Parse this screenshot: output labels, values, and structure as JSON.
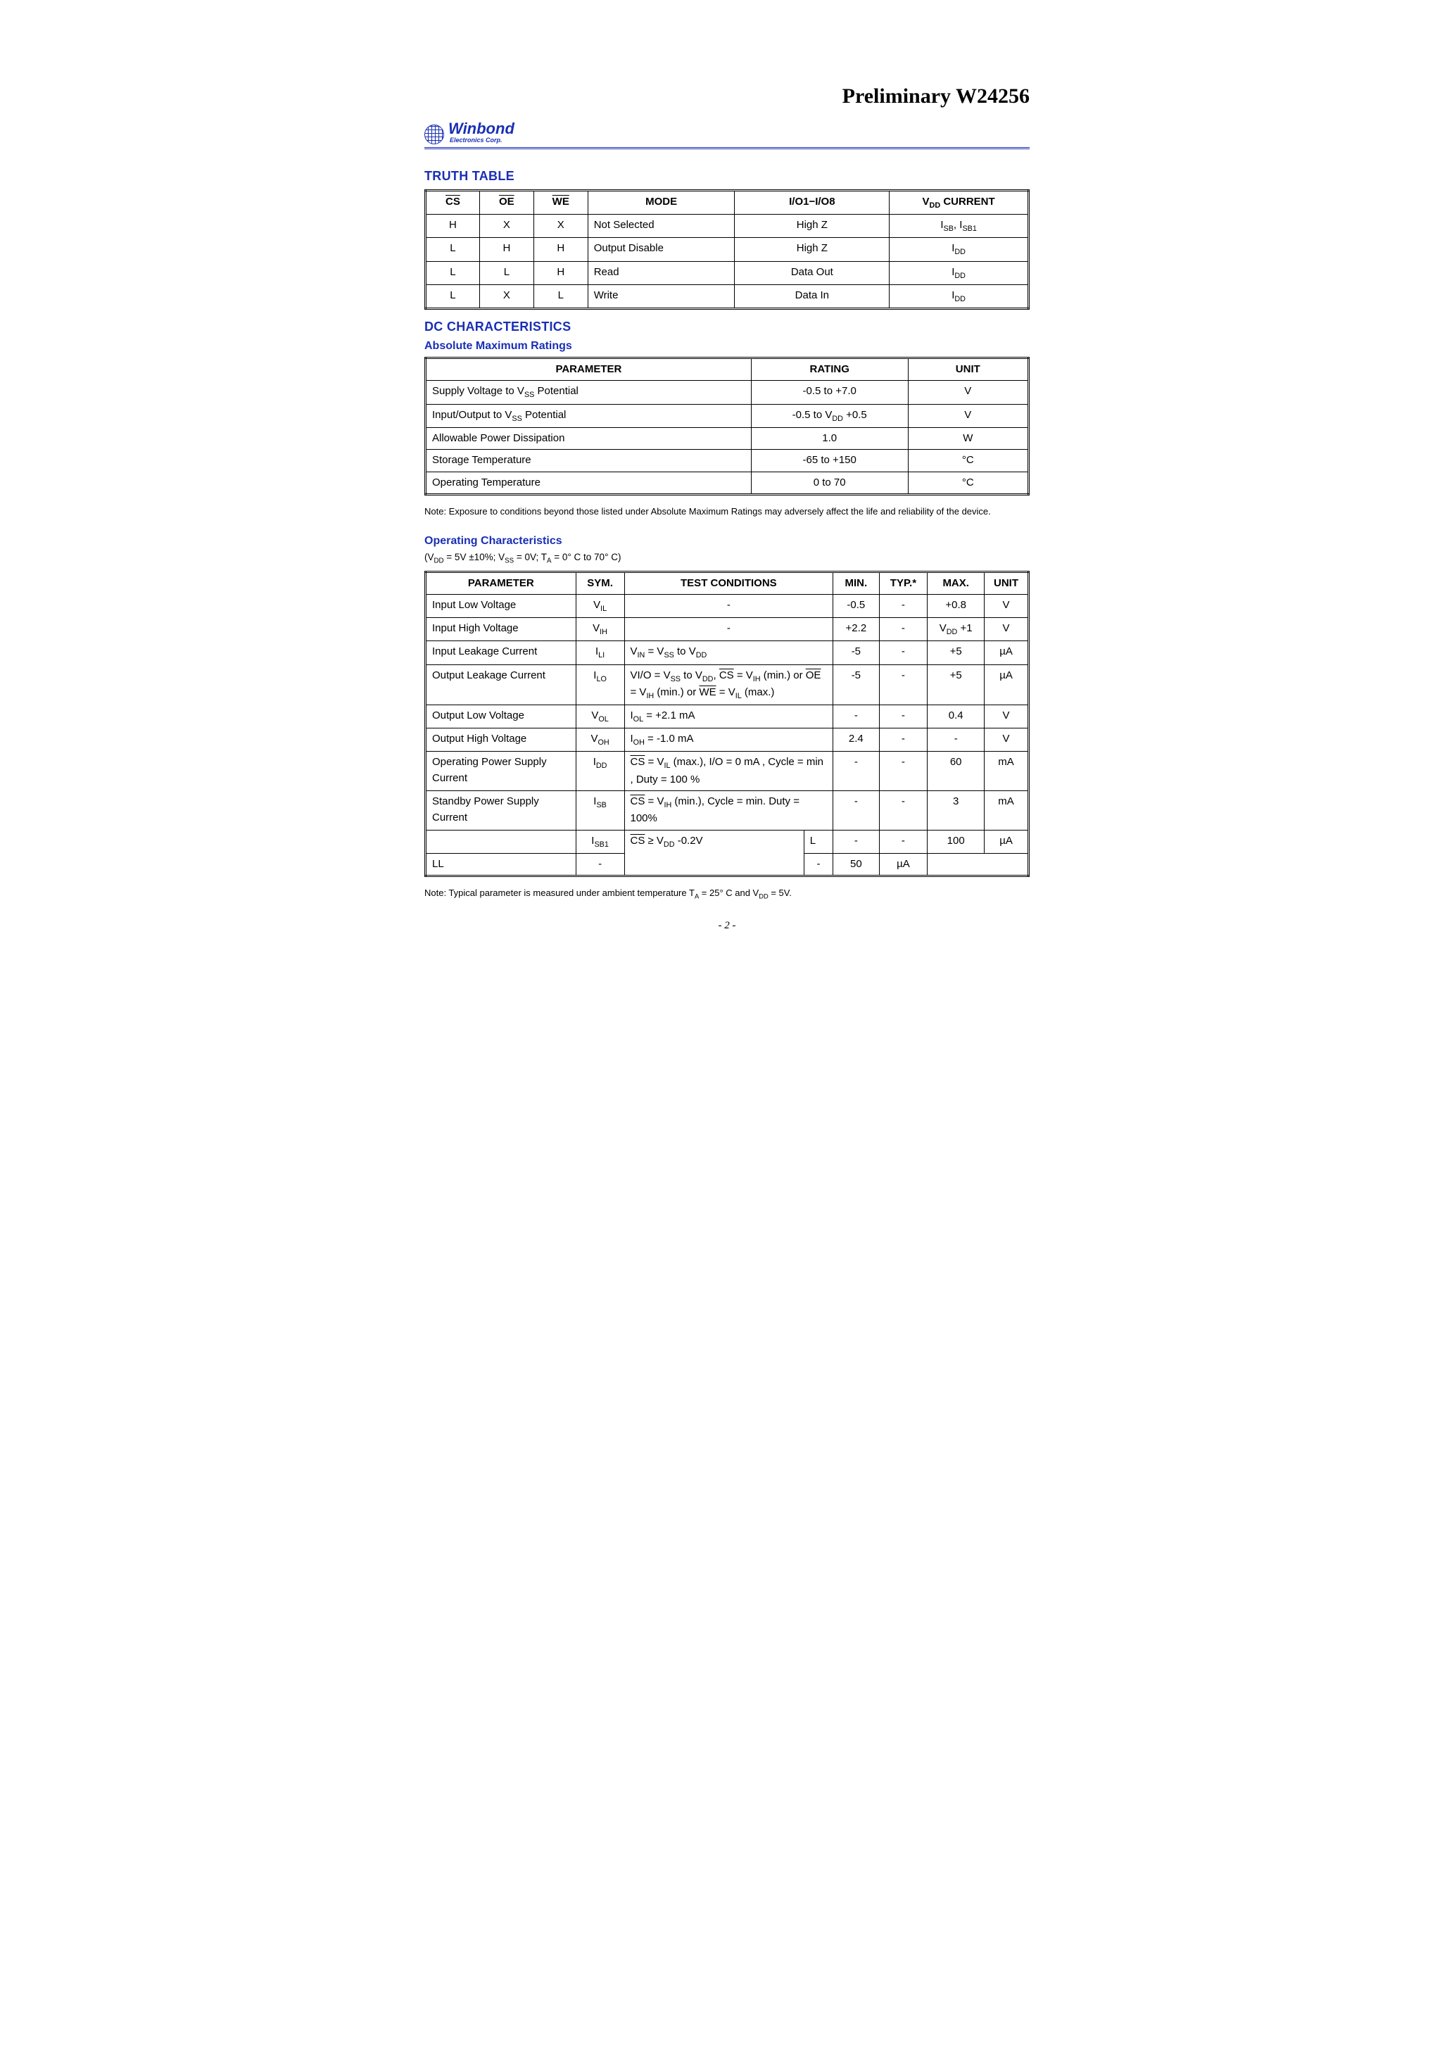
{
  "doc": {
    "title": "Preliminary W24256",
    "pagenum": "- 2 -"
  },
  "brand": {
    "name": "Winbond",
    "sub": "Electronics Corp."
  },
  "truth": {
    "heading": "TRUTH TABLE",
    "head": {
      "cs": "CS",
      "oe": "OE",
      "we": "WE",
      "mode": "MODE",
      "io": "I/O1−I/O8",
      "idd": "V",
      "idd_sub": "DD",
      "idd_rest": " CURRENT"
    },
    "rows": [
      {
        "cs": "H",
        "oe": "X",
        "we": "X",
        "mode": "Not Selected",
        "io": "High Z",
        "idd_html": "I<sub>SB</sub>, I<sub>SB1</sub>"
      },
      {
        "cs": "L",
        "oe": "H",
        "we": "H",
        "mode": "Output Disable",
        "io": "High Z",
        "idd_html": "I<sub>DD</sub>"
      },
      {
        "cs": "L",
        "oe": "L",
        "we": "H",
        "mode": "Read",
        "io": "Data Out",
        "idd_html": "I<sub>DD</sub>"
      },
      {
        "cs": "L",
        "oe": "X",
        "we": "L",
        "mode": "Write",
        "io": "Data In",
        "idd_html": "I<sub>DD</sub>"
      }
    ]
  },
  "dc": {
    "heading": "DC CHARACTERISTICS",
    "amr_heading": "Absolute Maximum Ratings",
    "amr_head": {
      "param": "PARAMETER",
      "rating": "RATING",
      "unit": "UNIT"
    },
    "amr_rows": [
      {
        "param_html": "Supply Voltage to V<sub>SS</sub> Potential",
        "rating": "-0.5 to +7.0",
        "unit": "V"
      },
      {
        "param_html": "Input/Output to V<sub>SS</sub> Potential",
        "rating_html": "-0.5 to V<sub>DD</sub> +0.5",
        "unit": "V"
      },
      {
        "param_html": "Allowable Power Dissipation",
        "rating": "1.0",
        "unit": "W"
      },
      {
        "param_html": "Storage Temperature",
        "rating": "-65 to +150",
        "unit": "°C"
      },
      {
        "param_html": "Operating Temperature",
        "rating": "0 to 70",
        "unit": "°C"
      }
    ],
    "amr_note": "Note: Exposure to conditions beyond those listed under Absolute Maximum Ratings may adversely affect the life and reliability of the device."
  },
  "op": {
    "heading": "Operating Characteristics",
    "cond_html": "(V<sub>DD</sub> = 5V ±10%; V<sub>SS</sub> = 0V; T<sub>A</sub> = 0° C to 70° C)",
    "head": {
      "param": "PARAMETER",
      "sym": "SYM.",
      "tc": "TEST CONDITIONS",
      "min": "MIN.",
      "typ": "TYP.*",
      "max": "MAX.",
      "unit": "UNIT"
    },
    "rows": [
      {
        "param": "Input Low Voltage",
        "sym_html": "V<sub>IL</sub>",
        "tc_html": "-",
        "tc_colspan": 2,
        "min": "-0.5",
        "typ": "-",
        "max": "+0.8",
        "unit": "V"
      },
      {
        "param": "Input High Voltage",
        "sym_html": "V<sub>IH</sub>",
        "tc_html": "-",
        "tc_colspan": 2,
        "min": "+2.2",
        "typ": "-",
        "max_html": "V<sub>DD</sub> +1",
        "unit": "V"
      },
      {
        "param": "Input Leakage Current",
        "sym_html": "I<sub>LI</sub>",
        "tc_html": "V<sub>IN</sub> = V<sub>SS</sub> to V<sub>DD</sub>",
        "tc_colspan": 2,
        "min": "-5",
        "typ": "-",
        "max": "+5",
        "unit": "µA"
      },
      {
        "param": "Output Leakage Current",
        "sym_html": "I<sub>LO</sub>",
        "tc_html": "VI/O = V<sub>SS</sub> to V<sub>DD</sub>, <span class=\"ov\">CS</span> = V<sub>IH</sub> (min.) or <span class=\"ov\">OE</span> = V<sub>IH</sub> (min.) or <span class=\"ov\">WE</span> = V<sub>IL</sub> (max.)",
        "tc_colspan": 2,
        "min": "-5",
        "typ": "-",
        "max": "+5",
        "unit": "µA"
      },
      {
        "param": "Output Low Voltage",
        "sym_html": "V<sub>OL</sub>",
        "tc_html": "I<sub>OL</sub> = +2.1 mA",
        "tc_colspan": 2,
        "min": "-",
        "typ": "-",
        "max": "0.4",
        "unit": "V"
      },
      {
        "param": "Output High Voltage",
        "sym_html": "V<sub>OH</sub>",
        "tc_html": "I<sub>OH</sub> = -1.0 mA",
        "tc_colspan": 2,
        "min": "2.4",
        "typ": "-",
        "max": "-",
        "unit": "V"
      },
      {
        "param": "Operating Power Supply Current",
        "sym_html": "I<sub>DD</sub>",
        "tc_html": "<span class=\"ov\">CS</span> = V<sub>IL</sub> (max.), I/O = 0 mA , Cycle = min , Duty = 100 %",
        "tc_colspan": 2,
        "min": "-",
        "typ": "-",
        "max": "60",
        "unit": "mA"
      },
      {
        "param": "Standby Power Supply Current",
        "sym_html": "I<sub>SB</sub>",
        "tc_html": "<span class=\"ov\">CS</span> = V<sub>IH</sub> (min.), Cycle = min. Duty = 100%",
        "tc_colspan": 2,
        "min": "-",
        "typ": "-",
        "max": "3",
        "unit": "mA"
      },
      {
        "param": "",
        "sym_html": "I<sub>SB1</sub>",
        "tc_html": "<span class=\"ov\">CS</span> ≥ V<sub>DD</sub> -0.2V",
        "tc_extra": "L",
        "tc_colspan": 1,
        "tc_rowspan": 2,
        "min": "-",
        "typ": "-",
        "max": "100",
        "unit": "µA"
      },
      {
        "tc_extra": "LL",
        "min": "-",
        "typ": "-",
        "max": "50",
        "unit": "µA",
        "continuation": true
      }
    ],
    "note_html": "Note: Typical parameter is measured under ambient temperature T<sub>A</sub> = 25° C and V<sub>DD</sub> = 5V."
  }
}
